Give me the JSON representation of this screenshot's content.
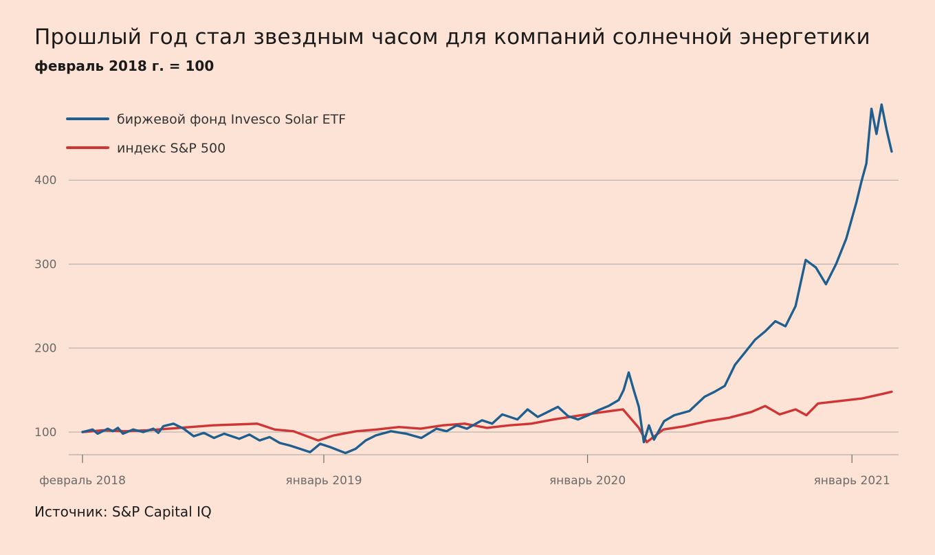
{
  "title": "Прошлый год стал звездным часом для компаний солнечной энергетики",
  "subtitle": "февраль 2018 г. = 100",
  "source": "Источник: S&P Capital IQ",
  "chart_data": {
    "type": "line",
    "title": "Прошлый год стал звездным часом для компаний солнечной энергетики",
    "subtitle": "февраль 2018 г. = 100",
    "ylim": [
      73,
      500
    ],
    "xlim": [
      "2018-02-01",
      "2021-02-25"
    ],
    "y_ticks": [
      100,
      200,
      300,
      400
    ],
    "x_ticks": [
      {
        "date": "2018-02-01",
        "label": "февраль 2018"
      },
      {
        "date": "2019-01-01",
        "label": "январь 2019"
      },
      {
        "date": "2020-01-01",
        "label": "январь 2020"
      },
      {
        "date": "2021-01-01",
        "label": "январь 2021"
      }
    ],
    "grid": "horizontal",
    "legend": "top-left",
    "series": [
      {
        "name": "биржевой фонд Invesco Solar ETF",
        "color": "#1f5f8f",
        "points": [
          [
            "2018-02-01",
            100
          ],
          [
            "2018-02-15",
            103
          ],
          [
            "2018-02-22",
            98
          ],
          [
            "2018-03-08",
            104
          ],
          [
            "2018-03-15",
            101
          ],
          [
            "2018-03-22",
            105
          ],
          [
            "2018-03-29",
            98
          ],
          [
            "2018-04-12",
            103
          ],
          [
            "2018-04-26",
            100
          ],
          [
            "2018-05-10",
            104
          ],
          [
            "2018-05-17",
            99
          ],
          [
            "2018-05-24",
            107
          ],
          [
            "2018-06-07",
            110
          ],
          [
            "2018-06-21",
            104
          ],
          [
            "2018-07-05",
            95
          ],
          [
            "2018-07-19",
            99
          ],
          [
            "2018-08-02",
            93
          ],
          [
            "2018-08-16",
            98
          ],
          [
            "2018-09-06",
            92
          ],
          [
            "2018-09-20",
            97
          ],
          [
            "2018-10-04",
            90
          ],
          [
            "2018-10-18",
            94
          ],
          [
            "2018-11-01",
            87
          ],
          [
            "2018-11-15",
            84
          ],
          [
            "2018-11-29",
            80
          ],
          [
            "2018-12-13",
            76
          ],
          [
            "2018-12-27",
            86
          ],
          [
            "2019-01-10",
            82
          ],
          [
            "2019-01-31",
            75
          ],
          [
            "2019-02-14",
            80
          ],
          [
            "2019-02-28",
            90
          ],
          [
            "2019-03-14",
            96
          ],
          [
            "2019-04-04",
            101
          ],
          [
            "2019-04-25",
            98
          ],
          [
            "2019-05-16",
            93
          ],
          [
            "2019-06-06",
            104
          ],
          [
            "2019-06-20",
            101
          ],
          [
            "2019-07-04",
            108
          ],
          [
            "2019-07-18",
            104
          ],
          [
            "2019-08-08",
            114
          ],
          [
            "2019-08-22",
            110
          ],
          [
            "2019-09-05",
            121
          ],
          [
            "2019-09-26",
            115
          ],
          [
            "2019-10-10",
            127
          ],
          [
            "2019-10-24",
            118
          ],
          [
            "2019-11-07",
            124
          ],
          [
            "2019-11-21",
            130
          ],
          [
            "2019-12-05",
            119
          ],
          [
            "2019-12-19",
            115
          ],
          [
            "2020-01-02",
            120
          ],
          [
            "2020-01-16",
            126
          ],
          [
            "2020-01-30",
            131
          ],
          [
            "2020-02-13",
            138
          ],
          [
            "2020-02-20",
            150
          ],
          [
            "2020-02-27",
            171
          ],
          [
            "2020-03-05",
            150
          ],
          [
            "2020-03-12",
            130
          ],
          [
            "2020-03-19",
            88
          ],
          [
            "2020-03-26",
            108
          ],
          [
            "2020-04-02",
            91
          ],
          [
            "2020-04-16",
            113
          ],
          [
            "2020-04-30",
            120
          ],
          [
            "2020-05-21",
            125
          ],
          [
            "2020-06-11",
            142
          ],
          [
            "2020-06-25",
            148
          ],
          [
            "2020-07-09",
            155
          ],
          [
            "2020-07-23",
            180
          ],
          [
            "2020-08-06",
            195
          ],
          [
            "2020-08-20",
            210
          ],
          [
            "2020-09-03",
            220
          ],
          [
            "2020-09-17",
            232
          ],
          [
            "2020-10-01",
            226
          ],
          [
            "2020-10-15",
            250
          ],
          [
            "2020-10-29",
            305
          ],
          [
            "2020-11-12",
            296
          ],
          [
            "2020-11-26",
            276
          ],
          [
            "2020-12-10",
            300
          ],
          [
            "2020-12-24",
            330
          ],
          [
            "2021-01-07",
            373
          ],
          [
            "2021-01-14",
            398
          ],
          [
            "2021-01-21",
            420
          ],
          [
            "2021-01-28",
            485
          ],
          [
            "2021-02-04",
            455
          ],
          [
            "2021-02-11",
            490
          ],
          [
            "2021-02-18",
            460
          ],
          [
            "2021-02-25",
            434
          ]
        ]
      },
      {
        "name": "индекс S&P 500",
        "color": "#d03535",
        "points": [
          [
            "2018-02-01",
            100
          ],
          [
            "2018-03-01",
            102
          ],
          [
            "2018-04-01",
            101
          ],
          [
            "2018-05-01",
            102
          ],
          [
            "2018-06-01",
            104
          ],
          [
            "2018-07-01",
            106
          ],
          [
            "2018-08-01",
            108
          ],
          [
            "2018-09-01",
            109
          ],
          [
            "2018-10-01",
            110
          ],
          [
            "2018-10-25",
            103
          ],
          [
            "2018-11-20",
            101
          ],
          [
            "2018-12-24",
            90
          ],
          [
            "2019-01-15",
            96
          ],
          [
            "2019-02-15",
            101
          ],
          [
            "2019-03-15",
            103
          ],
          [
            "2019-04-15",
            106
          ],
          [
            "2019-05-15",
            104
          ],
          [
            "2019-06-15",
            108
          ],
          [
            "2019-07-15",
            110
          ],
          [
            "2019-08-15",
            105
          ],
          [
            "2019-09-15",
            108
          ],
          [
            "2019-10-15",
            110
          ],
          [
            "2019-11-15",
            115
          ],
          [
            "2019-12-15",
            119
          ],
          [
            "2020-01-15",
            123
          ],
          [
            "2020-02-19",
            127
          ],
          [
            "2020-03-12",
            105
          ],
          [
            "2020-03-23",
            88
          ],
          [
            "2020-04-15",
            103
          ],
          [
            "2020-05-15",
            107
          ],
          [
            "2020-06-15",
            113
          ],
          [
            "2020-07-15",
            117
          ],
          [
            "2020-08-15",
            124
          ],
          [
            "2020-09-03",
            131
          ],
          [
            "2020-09-23",
            121
          ],
          [
            "2020-10-15",
            127
          ],
          [
            "2020-10-30",
            120
          ],
          [
            "2020-11-15",
            134
          ],
          [
            "2020-12-15",
            137
          ],
          [
            "2021-01-15",
            140
          ],
          [
            "2021-02-15",
            146
          ],
          [
            "2021-02-25",
            148
          ]
        ]
      }
    ]
  }
}
